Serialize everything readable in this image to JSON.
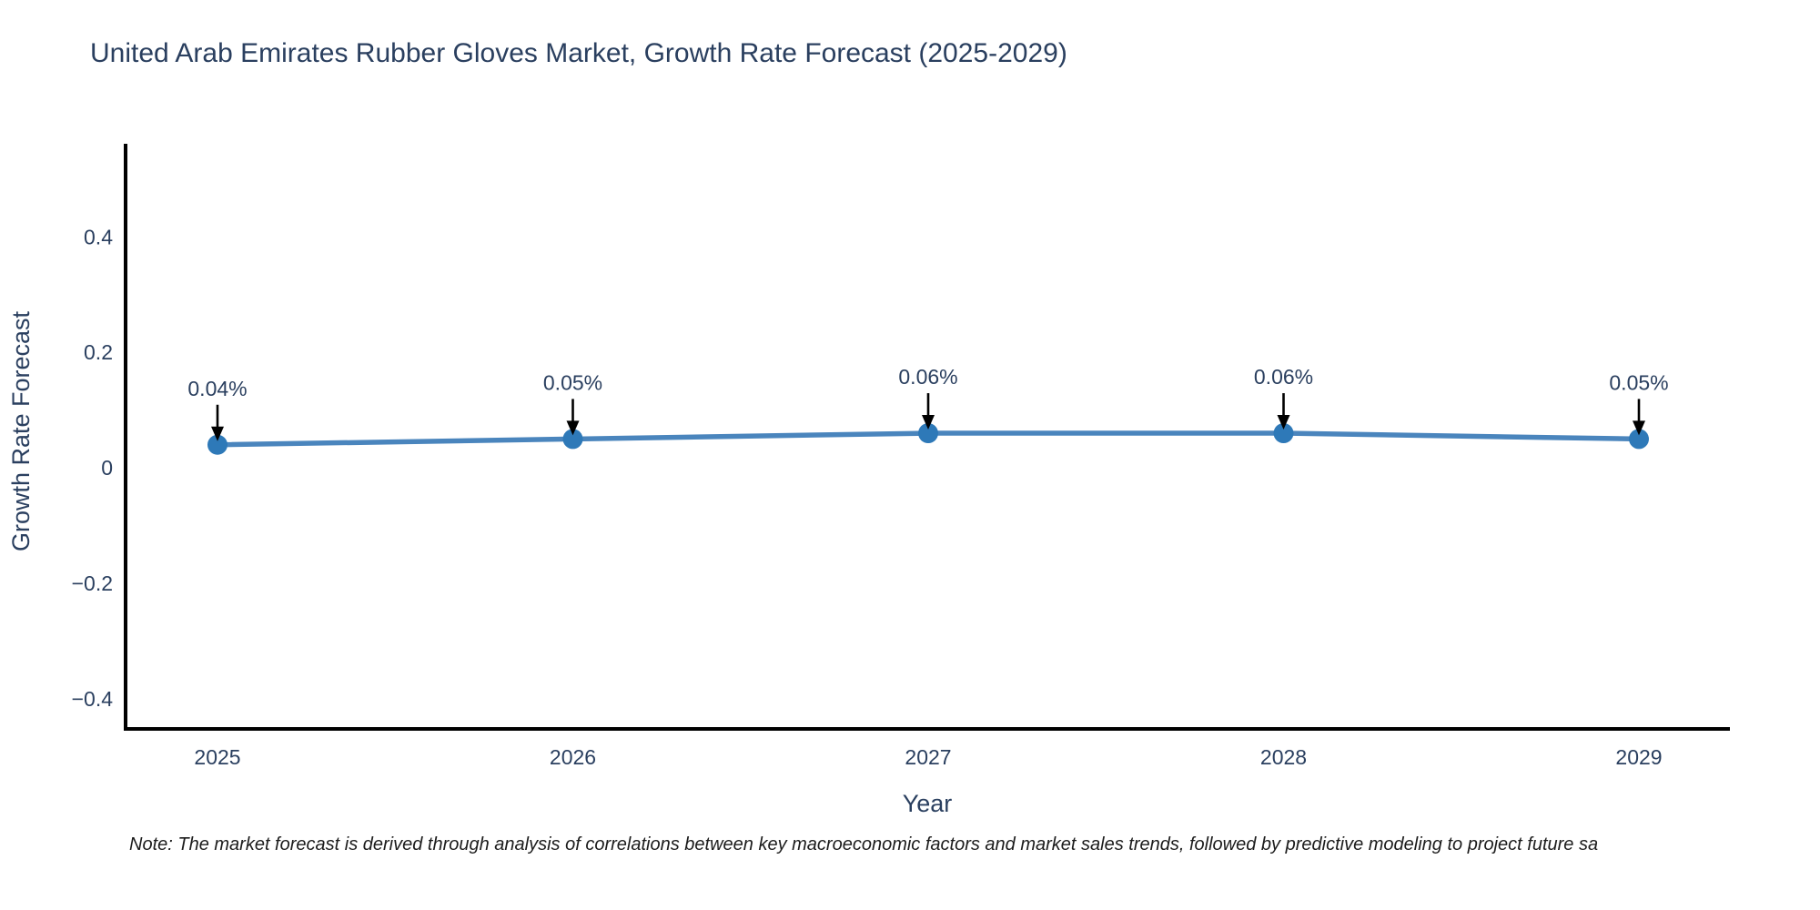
{
  "chart_data": {
    "type": "line",
    "title": "United Arab Emirates Rubber Gloves Market, Growth Rate Forecast (2025-2029)",
    "xlabel": "Year",
    "ylabel": "Growth Rate Forecast",
    "categories": [
      "2025",
      "2026",
      "2027",
      "2028",
      "2029"
    ],
    "series": [
      {
        "name": "Growth Rate Forecast",
        "values": [
          0.04,
          0.05,
          0.06,
          0.06,
          0.05
        ],
        "point_labels": [
          "0.04%",
          "0.05%",
          "0.06%",
          "0.06%",
          "0.05%"
        ]
      }
    ],
    "yticks": [
      -0.4,
      -0.2,
      0,
      0.2,
      0.4
    ],
    "ylim": [
      -0.452,
      0.558
    ],
    "grid": false,
    "legend_position": "none",
    "line_color": "#4a85bd",
    "marker_color": "#2e79b8",
    "arrow_color": "#000000",
    "axis_color": "#000000",
    "text_color": "#2a3f5f"
  },
  "footnote": "Note: The market forecast is derived through analysis of correlations between key macroeconomic factors and market sales trends, followed by predictive modeling to project future sa"
}
